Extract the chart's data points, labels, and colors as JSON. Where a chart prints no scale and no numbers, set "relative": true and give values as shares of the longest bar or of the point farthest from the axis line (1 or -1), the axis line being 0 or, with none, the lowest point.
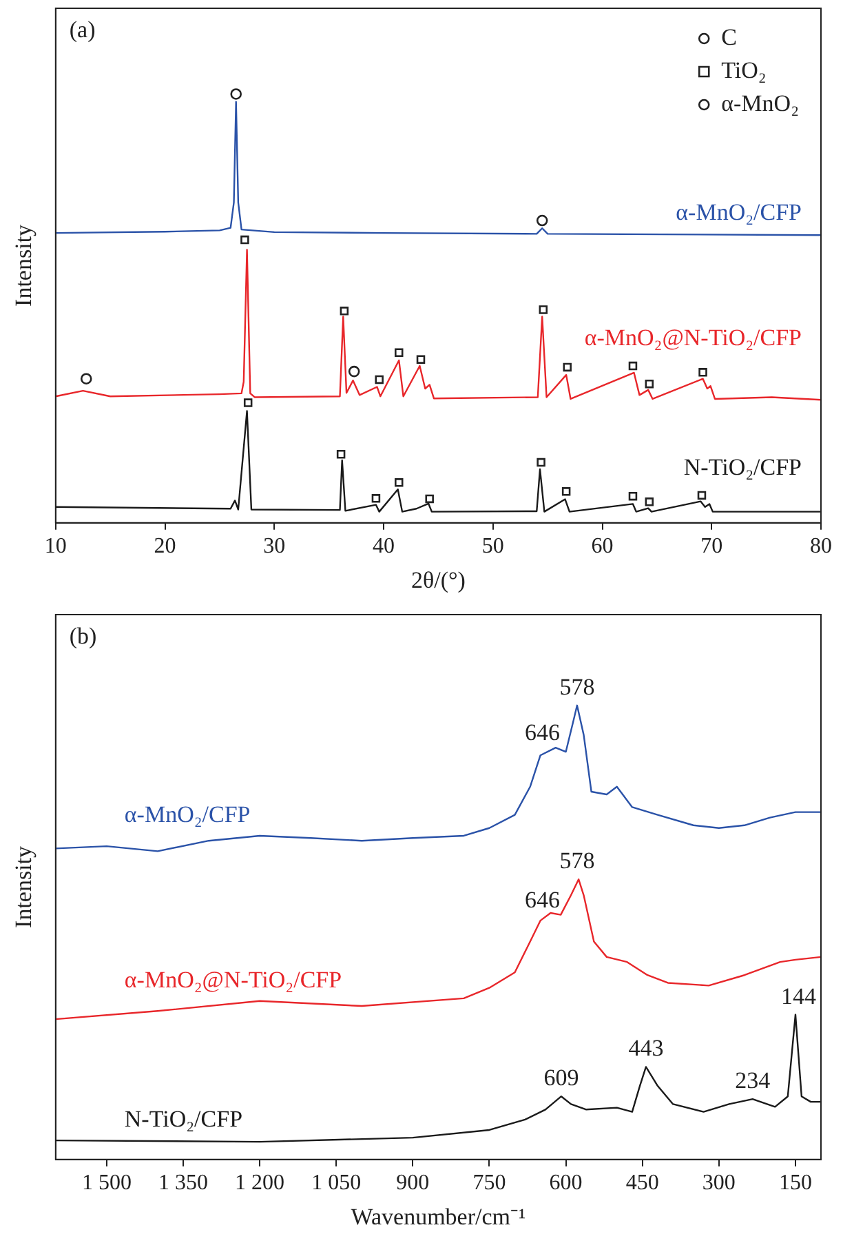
{
  "chart_data": [
    {
      "type": "line",
      "relative": true,
      "xlabel": "2θ/(°)",
      "ylabel": "Intensity",
      "xlim": [
        10,
        80
      ],
      "xticks": [
        10,
        20,
        30,
        40,
        50,
        60,
        70,
        80
      ],
      "legend": "top right",
      "annotations": [
        "(a)"
      ],
      "series": [
        {
          "name": "α-MnO₂/CFP",
          "color": "#2a52a8",
          "marker": "none",
          "x": [
            10,
            20,
            25,
            26,
            26.3,
            26.5,
            26.7,
            27,
            30,
            40,
            54,
            54.5,
            55,
            80
          ],
          "values": [
            0.676,
            0.679,
            0.682,
            0.688,
            0.747,
            0.982,
            0.747,
            0.684,
            0.678,
            0.676,
            0.674,
            0.687,
            0.674,
            0.671
          ]
        },
        {
          "name": "α-MnO₂@N-TiO₂/CFP",
          "color": "#e8262a",
          "marker": "none",
          "x": [
            10,
            12.5,
            15,
            25,
            27,
            27.2,
            27.5,
            27.8,
            28.2,
            36,
            36.3,
            36.6,
            37.2,
            37.8,
            39.4,
            39.7,
            41.4,
            41.8,
            43.3,
            43.8,
            44.2,
            44.6,
            54.1,
            54.5,
            54.9,
            56.7,
            57.1,
            62.9,
            63.4,
            64.2,
            64.6,
            69.2,
            69.6,
            69.9,
            70.3,
            75.5,
            80
          ],
          "values": [
            0.295,
            0.308,
            0.295,
            0.3,
            0.302,
            0.329,
            0.637,
            0.302,
            0.293,
            0.295,
            0.481,
            0.303,
            0.332,
            0.298,
            0.317,
            0.295,
            0.379,
            0.295,
            0.366,
            0.313,
            0.322,
            0.29,
            0.293,
            0.481,
            0.293,
            0.345,
            0.289,
            0.35,
            0.298,
            0.31,
            0.289,
            0.336,
            0.313,
            0.319,
            0.289,
            0.293,
            0.287
          ]
        },
        {
          "name": "N-TiO₂/CFP",
          "color": "#1a1a1a",
          "marker": "none",
          "x": [
            10,
            26,
            26.4,
            26.7,
            27.5,
            27.9,
            36,
            36.2,
            36.5,
            39.3,
            39.6,
            41.3,
            41.7,
            43,
            44.1,
            44.4,
            54,
            54.3,
            54.7,
            56.6,
            57,
            62.8,
            63.1,
            64.2,
            64.5,
            69,
            69.4,
            69.8,
            70.1,
            80
          ],
          "values": [
            0.037,
            0.033,
            0.052,
            0.031,
            0.261,
            0.031,
            0.03,
            0.146,
            0.028,
            0.042,
            0.026,
            0.078,
            0.026,
            0.033,
            0.045,
            0.026,
            0.027,
            0.125,
            0.026,
            0.055,
            0.026,
            0.044,
            0.026,
            0.034,
            0.026,
            0.05,
            0.037,
            0.044,
            0.026,
            0.026
          ]
        },
        {
          "type": "scatter",
          "name": "C",
          "color": "#222222",
          "marker": "circle",
          "x": [
            26.5,
            54.5
          ],
          "values": [
            1.0,
            0.705
          ]
        },
        {
          "type": "scatter",
          "name": "TiO₂",
          "color": "#222222",
          "marker": "square",
          "x": [
            27.3,
            36.4,
            39.6,
            41.4,
            43.4,
            54.6,
            56.8,
            62.8,
            64.3,
            69.2,
            27.6,
            36.1,
            39.3,
            41.4,
            44.2,
            54.4,
            56.7,
            62.8,
            64.3,
            69.1
          ],
          "values": [
            0.66,
            0.494,
            0.334,
            0.397,
            0.381,
            0.497,
            0.363,
            0.366,
            0.324,
            0.351,
            0.28,
            0.16,
            0.057,
            0.094,
            0.056,
            0.141,
            0.073,
            0.062,
            0.049,
            0.064
          ]
        },
        {
          "type": "scatter",
          "name": "α-MnO₂",
          "color": "#222222",
          "marker": "circle",
          "x": [
            12.8,
            37.3
          ],
          "values": [
            0.336,
            0.353
          ]
        }
      ]
    },
    {
      "type": "line",
      "relative": true,
      "xlabel": "Wavenumber/cm⁻¹",
      "ylabel": "Intensity",
      "xlim": [
        1600,
        100
      ],
      "xticks": [
        {
          "value": 1500,
          "label": "1 500"
        },
        {
          "value": 1350,
          "label": "1 350"
        },
        {
          "value": 1200,
          "label": "1 200"
        },
        {
          "value": 1050,
          "label": "1 050"
        },
        900,
        750,
        600,
        450,
        300,
        150
      ],
      "annotations": [
        "(b)",
        {
          "text": "578",
          "x": 578,
          "y": 1.0
        },
        {
          "text": "646",
          "x": 646,
          "y": 0.9
        },
        {
          "text": "578",
          "x": 578,
          "y": 0.617
        },
        {
          "text": "646",
          "x": 646,
          "y": 0.53
        },
        {
          "text": "609",
          "x": 609,
          "y": 0.139
        },
        {
          "text": "443",
          "x": 443,
          "y": 0.204
        },
        {
          "text": "234",
          "x": 234,
          "y": 0.133
        },
        {
          "text": "144",
          "x": 144,
          "y": 0.319
        }
      ],
      "series": [
        {
          "name": "α-MnO₂/CFP",
          "color": "#2a52a8",
          "x": [
            1600,
            1500,
            1400,
            1300,
            1200,
            1100,
            1000,
            900,
            800,
            750,
            700,
            670,
            650,
            620,
            600,
            585,
            578,
            565,
            550,
            520,
            500,
            470,
            420,
            350,
            300,
            250,
            200,
            150,
            100
          ],
          "values": [
            0.685,
            0.69,
            0.679,
            0.702,
            0.713,
            0.708,
            0.702,
            0.708,
            0.713,
            0.73,
            0.759,
            0.821,
            0.89,
            0.907,
            0.898,
            0.967,
            1.0,
            0.935,
            0.81,
            0.804,
            0.821,
            0.776,
            0.759,
            0.736,
            0.73,
            0.736,
            0.753,
            0.765,
            0.765
          ]
        },
        {
          "name": "α-MnO₂@N-TiO₂/CFP",
          "color": "#e8262a",
          "x": [
            1600,
            1400,
            1200,
            1000,
            800,
            750,
            700,
            670,
            650,
            630,
            610,
            590,
            575,
            565,
            545,
            520,
            480,
            440,
            400,
            320,
            250,
            180,
            150,
            100
          ],
          "values": [
            0.309,
            0.327,
            0.349,
            0.338,
            0.355,
            0.378,
            0.412,
            0.48,
            0.526,
            0.543,
            0.539,
            0.582,
            0.617,
            0.582,
            0.48,
            0.446,
            0.435,
            0.406,
            0.389,
            0.383,
            0.406,
            0.435,
            0.44,
            0.446
          ]
        },
        {
          "name": "N-TiO₂/CFP",
          "color": "#1a1a1a",
          "x": [
            1600,
            1200,
            900,
            750,
            680,
            640,
            609,
            590,
            560,
            500,
            470,
            455,
            443,
            420,
            390,
            330,
            280,
            234,
            190,
            165,
            150,
            138,
            120,
            100
          ],
          "values": [
            0.042,
            0.039,
            0.048,
            0.065,
            0.088,
            0.11,
            0.139,
            0.122,
            0.11,
            0.114,
            0.105,
            0.162,
            0.204,
            0.162,
            0.122,
            0.105,
            0.122,
            0.133,
            0.116,
            0.139,
            0.319,
            0.139,
            0.127,
            0.127
          ]
        }
      ]
    }
  ]
}
